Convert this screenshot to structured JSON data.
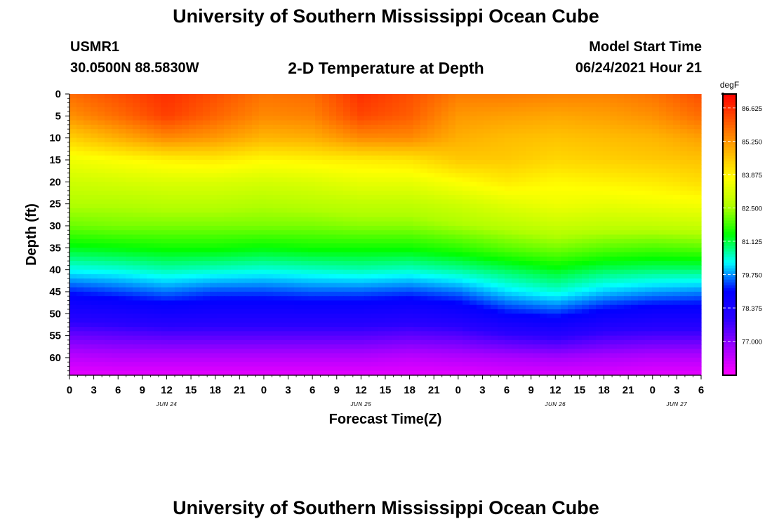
{
  "page": {
    "title_top": "University of Southern Mississippi Ocean Cube",
    "title_bottom": "University of Southern Mississippi Ocean Cube",
    "station_id": "USMR1",
    "station_coords": "30.0500N  88.5830W",
    "model_start_label": "Model Start Time",
    "model_start_value": "06/24/2021 Hour 21"
  },
  "colors": {
    "background": "#ffffff",
    "palette": [
      "#ff00ff",
      "#a000ff",
      "#2a00ff",
      "#0000ff",
      "#00ffff",
      "#00ff00",
      "#b0ff00",
      "#ffff00",
      "#ffb000",
      "#ff5a00",
      "#ff0000"
    ]
  },
  "chart_data": {
    "type": "heatmap",
    "title": "2-D Temperature at Depth",
    "xlabel": "Forecast Time(Z)",
    "ylabel": "Depth (ft)",
    "x_range_hours": [
      0,
      78
    ],
    "y_range_ft": [
      0,
      64
    ],
    "x_ticks": [
      {
        "hour": 0,
        "label": "0"
      },
      {
        "hour": 3,
        "label": "3"
      },
      {
        "hour": 6,
        "label": "6"
      },
      {
        "hour": 9,
        "label": "9"
      },
      {
        "hour": 12,
        "label": "12"
      },
      {
        "hour": 15,
        "label": "15"
      },
      {
        "hour": 18,
        "label": "18"
      },
      {
        "hour": 21,
        "label": "21"
      },
      {
        "hour": 24,
        "label": "0"
      },
      {
        "hour": 27,
        "label": "3"
      },
      {
        "hour": 30,
        "label": "6"
      },
      {
        "hour": 33,
        "label": "9"
      },
      {
        "hour": 36,
        "label": "12"
      },
      {
        "hour": 39,
        "label": "15"
      },
      {
        "hour": 42,
        "label": "18"
      },
      {
        "hour": 45,
        "label": "21"
      },
      {
        "hour": 48,
        "label": "0"
      },
      {
        "hour": 51,
        "label": "3"
      },
      {
        "hour": 54,
        "label": "6"
      },
      {
        "hour": 57,
        "label": "9"
      },
      {
        "hour": 60,
        "label": "12"
      },
      {
        "hour": 63,
        "label": "15"
      },
      {
        "hour": 66,
        "label": "18"
      },
      {
        "hour": 69,
        "label": "21"
      },
      {
        "hour": 72,
        "label": "0"
      },
      {
        "hour": 75,
        "label": "3"
      },
      {
        "hour": 78,
        "label": "6"
      }
    ],
    "date_labels": [
      {
        "hour": 12,
        "label": "JUN 24"
      },
      {
        "hour": 36,
        "label": "JUN 25"
      },
      {
        "hour": 60,
        "label": "JUN 26"
      },
      {
        "hour": 75,
        "label": "JUN 27"
      }
    ],
    "y_ticks": [
      0,
      5,
      10,
      15,
      20,
      25,
      30,
      35,
      40,
      45,
      50,
      55,
      60
    ],
    "colorbar": {
      "unit": "degF",
      "min": 75.6,
      "max": 87.2,
      "labels": [
        "86.625",
        "85.250",
        "83.875",
        "82.500",
        "81.125",
        "79.750",
        "78.375",
        "77.000"
      ]
    },
    "grid_hours": [
      0,
      6,
      12,
      18,
      24,
      30,
      36,
      42,
      48,
      54,
      60,
      66,
      72,
      78
    ],
    "grid_depths_ft": [
      0,
      5,
      10,
      15,
      20,
      25,
      30,
      35,
      40,
      45,
      50,
      55,
      60,
      64
    ],
    "temperature_degF": [
      [
        85.8,
        86.2,
        86.6,
        86.2,
        85.7,
        85.8,
        86.6,
        86.2,
        85.6,
        85.6,
        85.5,
        85.5,
        85.7,
        86.2
      ],
      [
        85.3,
        85.8,
        86.4,
        85.9,
        85.4,
        85.5,
        86.3,
        86.0,
        85.2,
        85.1,
        85.0,
        85.1,
        85.3,
        85.8
      ],
      [
        84.4,
        84.9,
        85.4,
        85.2,
        84.8,
        84.9,
        85.4,
        85.4,
        84.9,
        84.7,
        84.6,
        84.7,
        84.8,
        85.1
      ],
      [
        83.5,
        83.7,
        83.9,
        84.0,
        83.8,
        83.9,
        84.0,
        84.1,
        84.5,
        84.5,
        84.3,
        84.4,
        84.5,
        84.6
      ],
      [
        83.0,
        83.1,
        83.2,
        83.2,
        83.1,
        83.2,
        83.4,
        83.4,
        83.7,
        84.0,
        83.8,
        83.9,
        84.0,
        84.2
      ],
      [
        82.6,
        82.6,
        82.7,
        82.7,
        82.6,
        82.7,
        82.8,
        82.8,
        83.0,
        83.3,
        83.5,
        83.4,
        83.5,
        83.6
      ],
      [
        82.1,
        82.2,
        82.2,
        82.2,
        82.2,
        82.2,
        82.3,
        82.3,
        82.5,
        82.7,
        82.9,
        82.8,
        82.8,
        82.9
      ],
      [
        81.3,
        81.4,
        81.5,
        81.5,
        81.4,
        81.5,
        81.5,
        81.5,
        81.7,
        82.0,
        82.2,
        82.0,
        81.9,
        82.0
      ],
      [
        80.3,
        80.4,
        80.6,
        80.5,
        80.4,
        80.5,
        80.6,
        80.5,
        80.7,
        81.0,
        81.3,
        81.0,
        80.9,
        80.9
      ],
      [
        79.2,
        79.4,
        79.6,
        79.4,
        79.4,
        79.5,
        79.5,
        79.4,
        79.6,
        80.1,
        80.4,
        80.0,
        79.8,
        79.7
      ],
      [
        78.3,
        78.4,
        78.6,
        78.5,
        78.5,
        78.5,
        78.5,
        78.4,
        78.6,
        79.1,
        79.3,
        78.9,
        78.7,
        78.7
      ],
      [
        77.3,
        77.4,
        77.5,
        77.5,
        77.5,
        77.5,
        77.5,
        77.4,
        77.5,
        77.8,
        78.0,
        77.7,
        77.6,
        77.6
      ],
      [
        76.4,
        76.5,
        76.5,
        76.5,
        76.5,
        76.5,
        76.5,
        76.4,
        76.5,
        76.6,
        76.7,
        76.6,
        76.5,
        76.5
      ],
      [
        75.9,
        75.9,
        75.9,
        75.9,
        75.9,
        75.9,
        75.9,
        75.9,
        75.9,
        76.0,
        76.0,
        76.0,
        75.9,
        75.9
      ]
    ]
  }
}
